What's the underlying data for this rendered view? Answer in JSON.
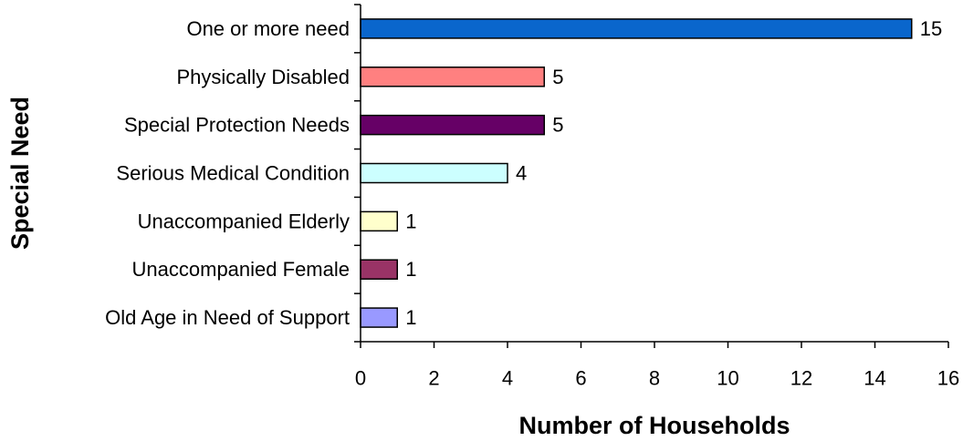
{
  "chart_data": {
    "type": "bar",
    "orientation": "horizontal",
    "categories": [
      "One or more need",
      "Physically Disabled",
      "Special Protection Needs",
      "Serious Medical Condition",
      "Unaccompanied Elderly",
      "Unaccompanied Female",
      "Old Age in Need of Support"
    ],
    "values": [
      15,
      5,
      5,
      4,
      1,
      1,
      1
    ],
    "value_labels": [
      "15",
      "5",
      "5",
      "4",
      "1",
      "1",
      "1"
    ],
    "colors": [
      "#0a66cc",
      "#ff8080",
      "#660066",
      "#ccffff",
      "#ffffcc",
      "#993366",
      "#9999ff"
    ],
    "xlabel": "Number of Households",
    "ylabel": "Special Need",
    "xlim": [
      0,
      16
    ],
    "xticks": [
      0,
      2,
      4,
      6,
      8,
      10,
      12,
      14,
      16
    ],
    "xtick_labels": [
      "0",
      "2",
      "4",
      "6",
      "8",
      "10",
      "12",
      "14",
      "16"
    ],
    "grid": false,
    "legend": "none"
  }
}
